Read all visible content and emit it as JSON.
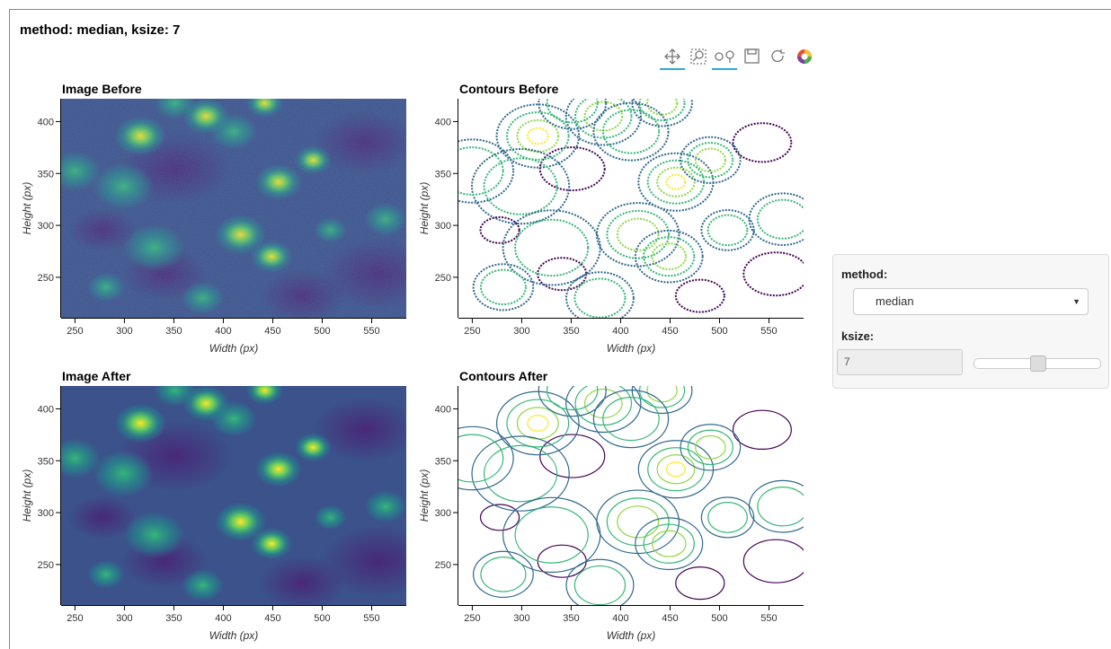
{
  "header": {
    "title": "method: median, ksize: 7"
  },
  "plots": [
    {
      "title": "Image Before",
      "xlabel": "Width (px)",
      "ylabel": "Height (px)",
      "xlim": [
        236,
        585
      ],
      "ylim": [
        211,
        422
      ],
      "xticks": [
        250,
        300,
        350,
        400,
        450,
        500,
        550
      ],
      "yticks": [
        250,
        300,
        350,
        400
      ]
    },
    {
      "title": "Contours Before",
      "xlabel": "Width (px)",
      "ylabel": "Height (px)",
      "xlim": [
        236,
        585
      ],
      "ylim": [
        211,
        422
      ],
      "xticks": [
        250,
        300,
        350,
        400,
        450,
        500,
        550
      ],
      "yticks": [
        250,
        300,
        350,
        400
      ]
    },
    {
      "title": "Image After",
      "xlabel": "Width (px)",
      "ylabel": "Height (px)",
      "xlim": [
        236,
        585
      ],
      "ylim": [
        211,
        422
      ],
      "xticks": [
        250,
        300,
        350,
        400,
        450,
        500,
        550
      ],
      "yticks": [
        250,
        300,
        350,
        400
      ]
    },
    {
      "title": "Contours After",
      "xlabel": "Width (px)",
      "ylabel": "Height (px)",
      "xlim": [
        236,
        585
      ],
      "ylim": [
        211,
        422
      ],
      "xticks": [
        250,
        300,
        350,
        400,
        450,
        500,
        550
      ],
      "yticks": [
        250,
        300,
        350,
        400
      ]
    }
  ],
  "widgets": {
    "method": {
      "label": "method:",
      "value": "median"
    },
    "ksize": {
      "label": "ksize:",
      "value": "7"
    }
  }
}
